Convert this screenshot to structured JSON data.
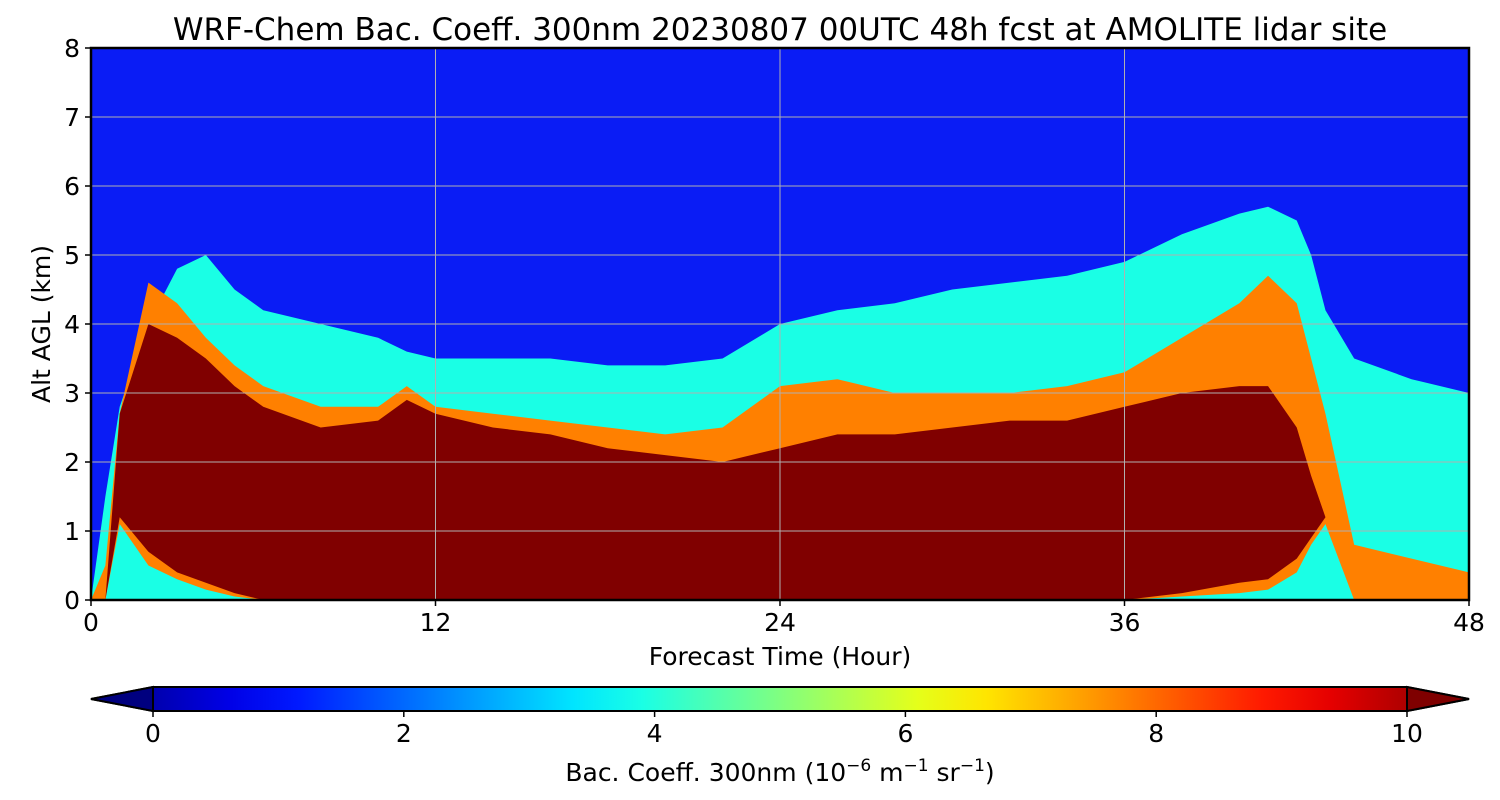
{
  "chart_data": {
    "type": "heatmap",
    "title": "WRF-Chem Bac. Coeff. 300nm  20230807 00UTC 48h fcst at AMOLITE lidar site",
    "xlabel": "Forecast Time (Hour)",
    "ylabel": "Alt AGL (km)",
    "xlim": [
      0,
      48
    ],
    "ylim": [
      0,
      8
    ],
    "xticks": [
      0,
      12,
      24,
      36,
      48
    ],
    "xtick_labels": [
      "0",
      "12",
      "24",
      "36",
      "48"
    ],
    "yticks": [
      0,
      1,
      2,
      3,
      4,
      5,
      6,
      7,
      8
    ],
    "ytick_labels": [
      "0",
      "1",
      "2",
      "3",
      "4",
      "5",
      "6",
      "7",
      "8"
    ],
    "grid": true,
    "colormap": "jet",
    "colorbar": {
      "label_prefix": "Bac. Coeff. 300nm  (10",
      "exp1": "−6",
      "mid": " m",
      "exp2": "−1",
      "mid2": " sr",
      "exp3": "−1",
      "suffix": ")",
      "range": [
        0,
        10
      ],
      "ticks": [
        0,
        2,
        4,
        6,
        8,
        10
      ],
      "tick_labels": [
        "0",
        "2",
        "4",
        "6",
        "8",
        "10"
      ],
      "extend": "both",
      "orientation": "horizontal"
    },
    "hours": [
      0,
      0.5,
      1,
      2,
      3,
      4,
      5,
      6,
      8,
      10,
      11,
      12,
      14,
      16,
      18,
      20,
      22,
      24,
      26,
      28,
      30,
      32,
      34,
      36,
      38,
      40,
      41,
      42,
      42.5,
      43,
      44,
      46,
      48
    ],
    "profiles": {
      "c_top": [
        0,
        1.5,
        2.8,
        4.0,
        4.8,
        5.0,
        4.5,
        4.2,
        4.0,
        3.8,
        3.6,
        3.5,
        3.5,
        3.5,
        3.4,
        3.4,
        3.5,
        4.0,
        4.2,
        4.3,
        4.5,
        4.6,
        4.7,
        4.9,
        5.3,
        5.6,
        5.7,
        5.5,
        5.0,
        4.2,
        3.5,
        3.2,
        3.0
      ],
      "o_top": [
        0,
        0.5,
        2.7,
        4.6,
        4.3,
        3.8,
        3.4,
        3.1,
        2.8,
        2.8,
        3.1,
        2.8,
        2.7,
        2.6,
        2.5,
        2.4,
        2.5,
        3.1,
        3.2,
        3.0,
        3.0,
        3.0,
        3.1,
        3.3,
        3.8,
        4.3,
        4.7,
        4.3,
        3.5,
        2.7,
        0.8,
        0.6,
        0.4
      ],
      "d_top": [
        0,
        0,
        2.7,
        4.0,
        3.8,
        3.5,
        3.1,
        2.8,
        2.5,
        2.6,
        2.9,
        2.7,
        2.5,
        2.4,
        2.2,
        2.1,
        2.0,
        2.2,
        2.4,
        2.4,
        2.5,
        2.6,
        2.6,
        2.8,
        3.0,
        3.1,
        3.1,
        2.5,
        1.8,
        1.2,
        0,
        0,
        0
      ],
      "d_bot": [
        0,
        0,
        1.2,
        0.7,
        0.4,
        0.25,
        0.1,
        0,
        0,
        0,
        0,
        0,
        0,
        0,
        0,
        0,
        0,
        0,
        0,
        0,
        0,
        0,
        0,
        0,
        0.1,
        0.25,
        0.3,
        0.6,
        0.9,
        1.2,
        0,
        0,
        0
      ],
      "o_bot": [
        0,
        0,
        1.1,
        0.5,
        0.3,
        0.15,
        0.05,
        0,
        0,
        0,
        0,
        0,
        0,
        0,
        0,
        0,
        0,
        0,
        0,
        0,
        0,
        0,
        0,
        0,
        0.05,
        0.1,
        0.15,
        0.4,
        0.8,
        1.1,
        0,
        0,
        0
      ]
    }
  }
}
